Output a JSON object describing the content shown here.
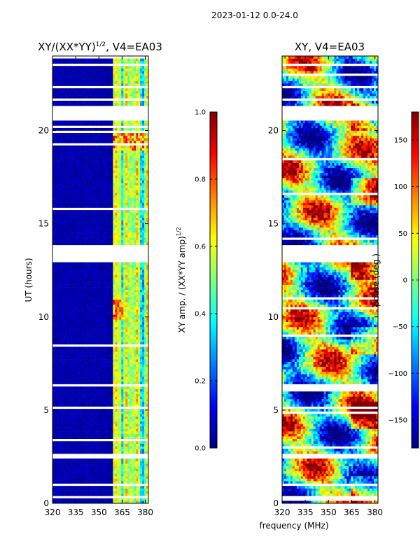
{
  "suptitle": "2023-01-12 0.0-24.0",
  "colors": {
    "jet": [
      "#00007f",
      "#0000ff",
      "#007fff",
      "#00ffff",
      "#7fff7f",
      "#ffff00",
      "#ff7f00",
      "#ff0000",
      "#7f0000"
    ],
    "gap": "#ffffff",
    "axis": "#000000"
  },
  "chart_data": [
    {
      "type": "heatmap",
      "title": "XY/(XX*YY)",
      "title_exponent": "1/2",
      "title_suffix": ", V4=EA03",
      "xlabel": "",
      "ylabel": "UT (hours)",
      "xlim": [
        320,
        382
      ],
      "ylim": [
        0,
        24
      ],
      "xticks": [
        320,
        335,
        350,
        365,
        380
      ],
      "yticks": [
        0,
        5,
        10,
        15,
        20
      ],
      "xtick_labels": [
        "320",
        "335",
        "350",
        "365",
        "380"
      ],
      "ytick_labels": [
        "0",
        "5",
        "10",
        "15",
        "20"
      ],
      "colorbar": {
        "label": "XY amp. / (XX*YY amp)",
        "label_exponent": "1/2",
        "range": [
          0.0,
          1.0
        ],
        "ticks": [
          0.0,
          0.2,
          0.4,
          0.6,
          0.8,
          1.0
        ],
        "tick_labels": [
          "0.0",
          "0.2",
          "0.4",
          "0.6",
          "0.8",
          "1.0"
        ]
      }
    },
    {
      "type": "heatmap",
      "title": "XY, V4=EA03",
      "xlabel": "frequency (MHz)",
      "ylabel": "",
      "xlim": [
        320,
        382
      ],
      "ylim": [
        0,
        24
      ],
      "xticks": [
        320,
        335,
        350,
        365,
        380
      ],
      "yticks": [
        0,
        5,
        10,
        15,
        20
      ],
      "xtick_labels": [
        "320",
        "335",
        "350",
        "365",
        "380"
      ],
      "ytick_labels": [
        "0",
        "5",
        "10",
        "15",
        "20"
      ],
      "colorbar": {
        "label": "phase (deg.)",
        "range": [
          -180,
          180
        ],
        "ticks": [
          -150,
          -100,
          -50,
          0,
          50,
          100,
          150
        ],
        "tick_labels": [
          "−150",
          "−100",
          "−50",
          "0",
          "50",
          "100",
          "150"
        ]
      }
    }
  ],
  "data_gaps_ut": [
    [
      0.3,
      0.4
    ],
    [
      0.95,
      1.05
    ],
    [
      2.4,
      2.65
    ],
    [
      5.05,
      5.15
    ],
    [
      12.95,
      13.8
    ],
    [
      20.5,
      21.3
    ],
    [
      21.6,
      21.75
    ],
    [
      22.3,
      22.4
    ],
    [
      23.5,
      23.6
    ]
  ]
}
